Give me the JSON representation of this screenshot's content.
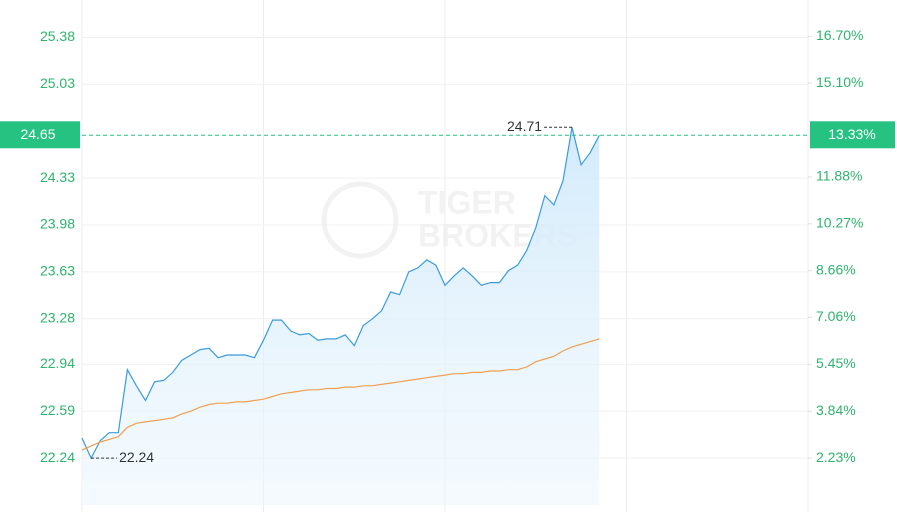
{
  "chart_data": {
    "type": "line",
    "watermark": [
      "TIGER",
      "BROKERS"
    ],
    "x": [
      0,
      3,
      6,
      9,
      12,
      15,
      18,
      21,
      24,
      27,
      30,
      33,
      36,
      39,
      42,
      45,
      48,
      51,
      54,
      57,
      60,
      63,
      66,
      69,
      72,
      75,
      78,
      81,
      84,
      87,
      90,
      93,
      96,
      99,
      102,
      105,
      108,
      111,
      114,
      117,
      120,
      123,
      126,
      129,
      132,
      135,
      138,
      141,
      144,
      147,
      150,
      153,
      156,
      159,
      162,
      165,
      168,
      171
    ],
    "series": [
      {
        "color": "#3b9bdc",
        "values": [
          22.39,
          22.24,
          22.37,
          22.43,
          22.43,
          22.9,
          22.78,
          22.67,
          22.81,
          22.82,
          22.88,
          22.97,
          23.01,
          23.05,
          23.06,
          22.99,
          23.01,
          23.01,
          23.01,
          22.99,
          23.12,
          23.27,
          23.27,
          23.19,
          23.16,
          23.17,
          23.12,
          23.13,
          23.13,
          23.16,
          23.08,
          23.23,
          23.28,
          23.34,
          23.48,
          23.46,
          23.63,
          23.66,
          23.72,
          23.68,
          23.53,
          23.6,
          23.66,
          23.6,
          23.53,
          23.55,
          23.55,
          23.64,
          23.68,
          23.79,
          23.96,
          24.2,
          24.13,
          24.31,
          24.71,
          24.43,
          24.52,
          24.65
        ]
      },
      {
        "color": "#f0a050",
        "values": [
          22.3,
          22.33,
          22.36,
          22.38,
          22.4,
          22.47,
          22.5,
          22.51,
          22.52,
          22.53,
          22.54,
          22.57,
          22.59,
          22.62,
          22.64,
          22.65,
          22.65,
          22.66,
          22.66,
          22.67,
          22.68,
          22.7,
          22.72,
          22.73,
          22.74,
          22.75,
          22.75,
          22.76,
          22.76,
          22.77,
          22.77,
          22.78,
          22.78,
          22.79,
          22.8,
          22.81,
          22.82,
          22.83,
          22.84,
          22.85,
          22.86,
          22.87,
          22.87,
          22.88,
          22.88,
          22.89,
          22.89,
          22.9,
          22.9,
          22.92,
          22.96,
          22.98,
          23.0,
          23.04,
          23.07,
          23.09,
          23.11,
          23.13
        ]
      }
    ],
    "xlim": [
      0,
      240
    ],
    "xticks": [
      0,
      60,
      120,
      180,
      240
    ],
    "ylim": [
      21.89,
      25.66
    ],
    "yticks": [
      25.38,
      25.03,
      24.33,
      23.98,
      23.63,
      23.28,
      22.94,
      22.59,
      22.24
    ],
    "y2lim": [
      0.62,
      17.95
    ],
    "y2ticks": [
      {
        "value": 16.7,
        "label": "16.70%"
      },
      {
        "value": 15.1,
        "label": "15.10%"
      },
      {
        "value": 11.88,
        "label": "11.88%"
      },
      {
        "value": 10.27,
        "label": "10.27%"
      },
      {
        "value": 8.66,
        "label": "8.66%"
      },
      {
        "value": 7.06,
        "label": "7.06%"
      },
      {
        "value": 5.45,
        "label": "5.45%"
      },
      {
        "value": 3.84,
        "label": "3.84%"
      },
      {
        "value": 2.23,
        "label": "2.23%"
      }
    ],
    "current": {
      "value": 24.65,
      "change": {
        "value": 13.33,
        "label": "13.33%"
      }
    },
    "high": {
      "x": 162,
      "value": 24.71
    },
    "low": {
      "x": 3,
      "value": 22.24
    },
    "grid": true
  }
}
